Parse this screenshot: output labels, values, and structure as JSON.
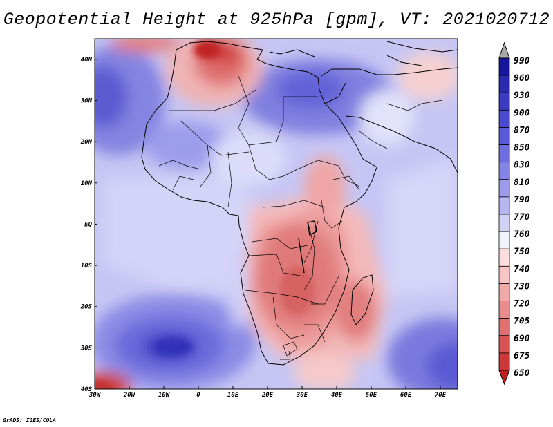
{
  "title": "Geopotential Height at 925hPa [gpm], VT: 2021020712",
  "credit": "GrADS: IGES/COLA",
  "chart_data": {
    "type": "filled-contour-map",
    "variable": "Geopotential Height",
    "level": "925hPa",
    "units": "gpm",
    "valid_time": "2021020712",
    "lon_range": [
      -30,
      75
    ],
    "lat_range": [
      -40,
      45
    ],
    "x_ticks": [
      {
        "lon": -30,
        "label": "30W"
      },
      {
        "lon": -20,
        "label": "20W"
      },
      {
        "lon": -10,
        "label": "10W"
      },
      {
        "lon": 0,
        "label": "0"
      },
      {
        "lon": 10,
        "label": "10E"
      },
      {
        "lon": 20,
        "label": "20E"
      },
      {
        "lon": 30,
        "label": "30E"
      },
      {
        "lon": 40,
        "label": "40E"
      },
      {
        "lon": 50,
        "label": "50E"
      },
      {
        "lon": 60,
        "label": "60E"
      },
      {
        "lon": 70,
        "label": "70E"
      }
    ],
    "y_ticks": [
      {
        "lat": 40,
        "label": "40N"
      },
      {
        "lat": 30,
        "label": "30N"
      },
      {
        "lat": 20,
        "label": "20N"
      },
      {
        "lat": 10,
        "label": "10N"
      },
      {
        "lat": 0,
        "label": "EQ"
      },
      {
        "lat": -10,
        "label": "10S"
      },
      {
        "lat": -20,
        "label": "20S"
      },
      {
        "lat": -30,
        "label": "30S"
      },
      {
        "lat": -40,
        "label": "40S"
      }
    ],
    "colorbar": {
      "levels": [
        "990",
        "960",
        "930",
        "900",
        "870",
        "850",
        "830",
        "810",
        "790",
        "770",
        "760",
        "750",
        "740",
        "730",
        "720",
        "705",
        "690",
        "675",
        "650"
      ],
      "colors": [
        "#16169c",
        "#2a2ab0",
        "#3a3ac2",
        "#4a4ad0",
        "#5a5ad8",
        "#6e6ee0",
        "#8484e6",
        "#9c9cec",
        "#b6b6f2",
        "#d2d2f8",
        "#f2f2fc",
        "#fcdcdc",
        "#f8c4c4",
        "#f0a8a8",
        "#e88c8c",
        "#e07070",
        "#d85454",
        "#cc3838",
        "#c02020",
        "#a80808"
      ]
    }
  }
}
